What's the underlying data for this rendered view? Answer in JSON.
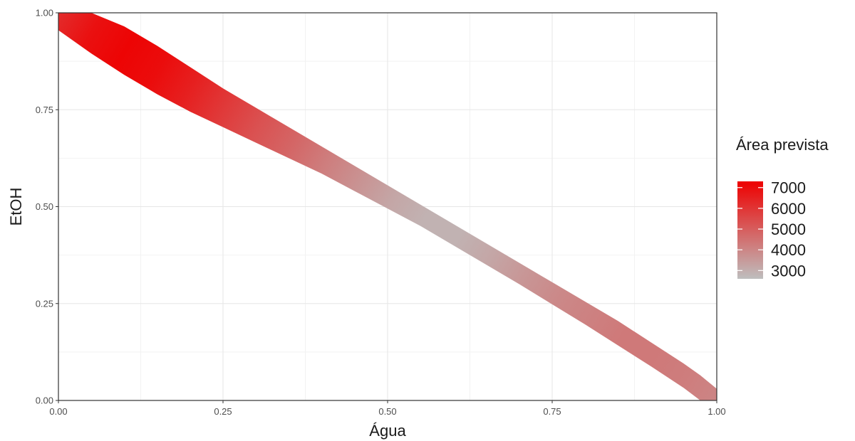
{
  "chart_data": {
    "type": "heatmap",
    "xlabel": "Água",
    "ylabel": "EtOH",
    "xlim": [
      0,
      1
    ],
    "ylim": [
      0,
      1
    ],
    "x_ticks": [
      "0.00",
      "0.25",
      "0.50",
      "0.75",
      "1.00"
    ],
    "y_ticks": [
      "0.00",
      "0.25",
      "0.50",
      "0.75",
      "1.00"
    ],
    "grid": true,
    "legend": {
      "title": "Área prevista",
      "placement": "right",
      "labels": [
        "7000",
        "6000",
        "5000",
        "4000",
        "3000"
      ],
      "values": [
        7000,
        6000,
        5000,
        4000,
        3000
      ],
      "range": [
        2600,
        7300
      ],
      "color_low": "#bebebe",
      "color_high": "#ee0000"
    },
    "band": {
      "description_values": "predicted area along the EtOH + Água ≈ 1 mixture line",
      "points": [
        {
          "x": 0.0,
          "y_low": 0.955,
          "y_high": 1.0,
          "value": 6200
        },
        {
          "x": 0.05,
          "y_low": 0.895,
          "y_high": 1.0,
          "value": 6900
        },
        {
          "x": 0.1,
          "y_low": 0.84,
          "y_high": 0.965,
          "value": 7200
        },
        {
          "x": 0.15,
          "y_low": 0.79,
          "y_high": 0.915,
          "value": 7000
        },
        {
          "x": 0.2,
          "y_low": 0.745,
          "y_high": 0.86,
          "value": 6500
        },
        {
          "x": 0.25,
          "y_low": 0.705,
          "y_high": 0.805,
          "value": 5900
        },
        {
          "x": 0.3,
          "y_low": 0.665,
          "y_high": 0.755,
          "value": 5300
        },
        {
          "x": 0.35,
          "y_low": 0.625,
          "y_high": 0.705,
          "value": 4800
        },
        {
          "x": 0.4,
          "y_low": 0.585,
          "y_high": 0.655,
          "value": 4200
        },
        {
          "x": 0.45,
          "y_low": 0.54,
          "y_high": 0.605,
          "value": 3700
        },
        {
          "x": 0.5,
          "y_low": 0.495,
          "y_high": 0.555,
          "value": 3200
        },
        {
          "x": 0.55,
          "y_low": 0.45,
          "y_high": 0.505,
          "value": 2900
        },
        {
          "x": 0.6,
          "y_low": 0.4,
          "y_high": 0.455,
          "value": 2900
        },
        {
          "x": 0.65,
          "y_low": 0.35,
          "y_high": 0.405,
          "value": 3200
        },
        {
          "x": 0.7,
          "y_low": 0.3,
          "y_high": 0.355,
          "value": 3600
        },
        {
          "x": 0.75,
          "y_low": 0.248,
          "y_high": 0.305,
          "value": 3900
        },
        {
          "x": 0.8,
          "y_low": 0.196,
          "y_high": 0.255,
          "value": 4100
        },
        {
          "x": 0.85,
          "y_low": 0.142,
          "y_high": 0.205,
          "value": 4300
        },
        {
          "x": 0.9,
          "y_low": 0.088,
          "y_high": 0.15,
          "value": 4300
        },
        {
          "x": 0.95,
          "y_low": 0.032,
          "y_high": 0.095,
          "value": 4200
        },
        {
          "x": 0.975,
          "y_low": 0.0,
          "y_high": 0.065,
          "value": 4100
        },
        {
          "x": 1.0,
          "y_low": 0.0,
          "y_high": 0.03,
          "value": 4000
        }
      ]
    }
  }
}
